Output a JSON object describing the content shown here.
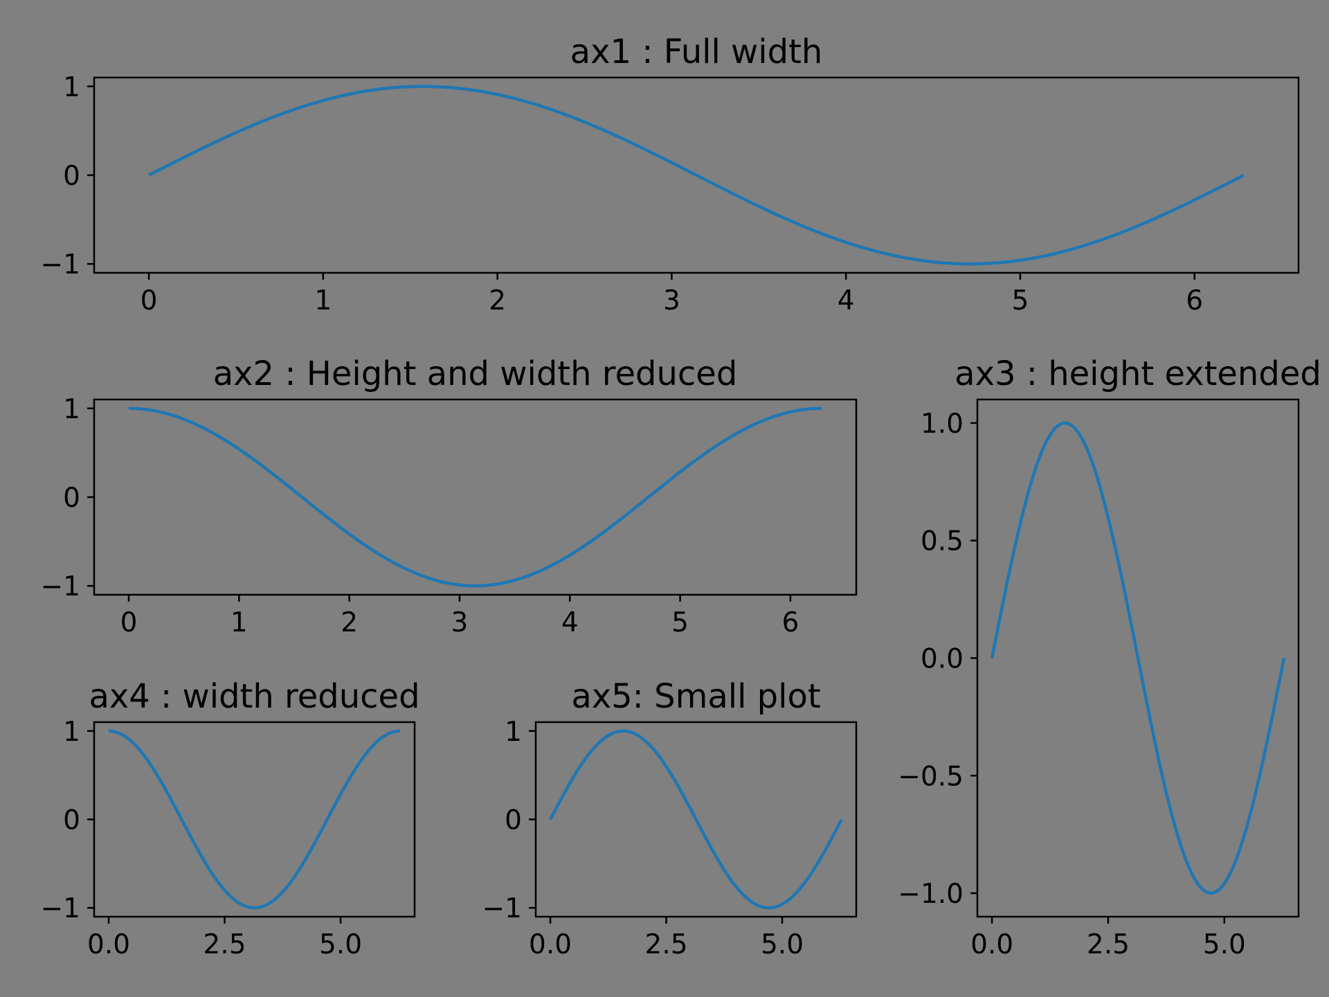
{
  "colors": {
    "background": "#808080",
    "line": "#1f77b4",
    "axes": "#000000"
  },
  "chart_data": [
    {
      "id": "ax1",
      "type": "line",
      "title": "ax1 : Full width",
      "function": "sin",
      "x_range": [
        0,
        6.283
      ],
      "xlim": [
        -0.314,
        6.597
      ],
      "ylim": [
        -1.1,
        1.1
      ],
      "xticks": [
        0,
        1,
        2,
        3,
        4,
        5,
        6
      ],
      "xtick_labels": [
        "0",
        "1",
        "2",
        "3",
        "4",
        "5",
        "6"
      ],
      "yticks": [
        -1,
        0,
        1
      ],
      "ytick_labels": [
        "−1",
        "0",
        "1"
      ],
      "grid": false
    },
    {
      "id": "ax2",
      "type": "line",
      "title": "ax2 : Height and width reduced",
      "function": "cos",
      "x_range": [
        0,
        6.283
      ],
      "xlim": [
        -0.314,
        6.597
      ],
      "ylim": [
        -1.1,
        1.1
      ],
      "xticks": [
        0,
        1,
        2,
        3,
        4,
        5,
        6
      ],
      "xtick_labels": [
        "0",
        "1",
        "2",
        "3",
        "4",
        "5",
        "6"
      ],
      "yticks": [
        -1,
        0,
        1
      ],
      "ytick_labels": [
        "−1",
        "0",
        "1"
      ],
      "grid": false
    },
    {
      "id": "ax3",
      "type": "line",
      "title": "ax3 : height extended",
      "function": "sin",
      "x_range": [
        0,
        6.283
      ],
      "xlim": [
        -0.314,
        6.597
      ],
      "ylim": [
        -1.1,
        1.1
      ],
      "xticks": [
        0,
        2.5,
        5
      ],
      "xtick_labels": [
        "0.0",
        "2.5",
        "5.0"
      ],
      "yticks": [
        -1,
        -0.5,
        0,
        0.5,
        1
      ],
      "ytick_labels": [
        "−1.0",
        "−0.5",
        "0.0",
        "0.5",
        "1.0"
      ],
      "grid": false
    },
    {
      "id": "ax4",
      "type": "line",
      "title": "ax4 : width reduced",
      "function": "cos",
      "x_range": [
        0,
        6.283
      ],
      "xlim": [
        -0.314,
        6.597
      ],
      "ylim": [
        -1.1,
        1.1
      ],
      "xticks": [
        0,
        2.5,
        5
      ],
      "xtick_labels": [
        "0.0",
        "2.5",
        "5.0"
      ],
      "yticks": [
        -1,
        0,
        1
      ],
      "ytick_labels": [
        "−1",
        "0",
        "1"
      ],
      "grid": false
    },
    {
      "id": "ax5",
      "type": "line",
      "title": "ax5: Small plot",
      "function": "sin",
      "x_range": [
        0,
        6.283
      ],
      "xlim": [
        -0.314,
        6.597
      ],
      "ylim": [
        -1.1,
        1.1
      ],
      "xticks": [
        0,
        2.5,
        5
      ],
      "xtick_labels": [
        "0.0",
        "2.5",
        "5.0"
      ],
      "yticks": [
        -1,
        0,
        1
      ],
      "ytick_labels": [
        "−1",
        "0",
        "1"
      ],
      "grid": false
    }
  ]
}
